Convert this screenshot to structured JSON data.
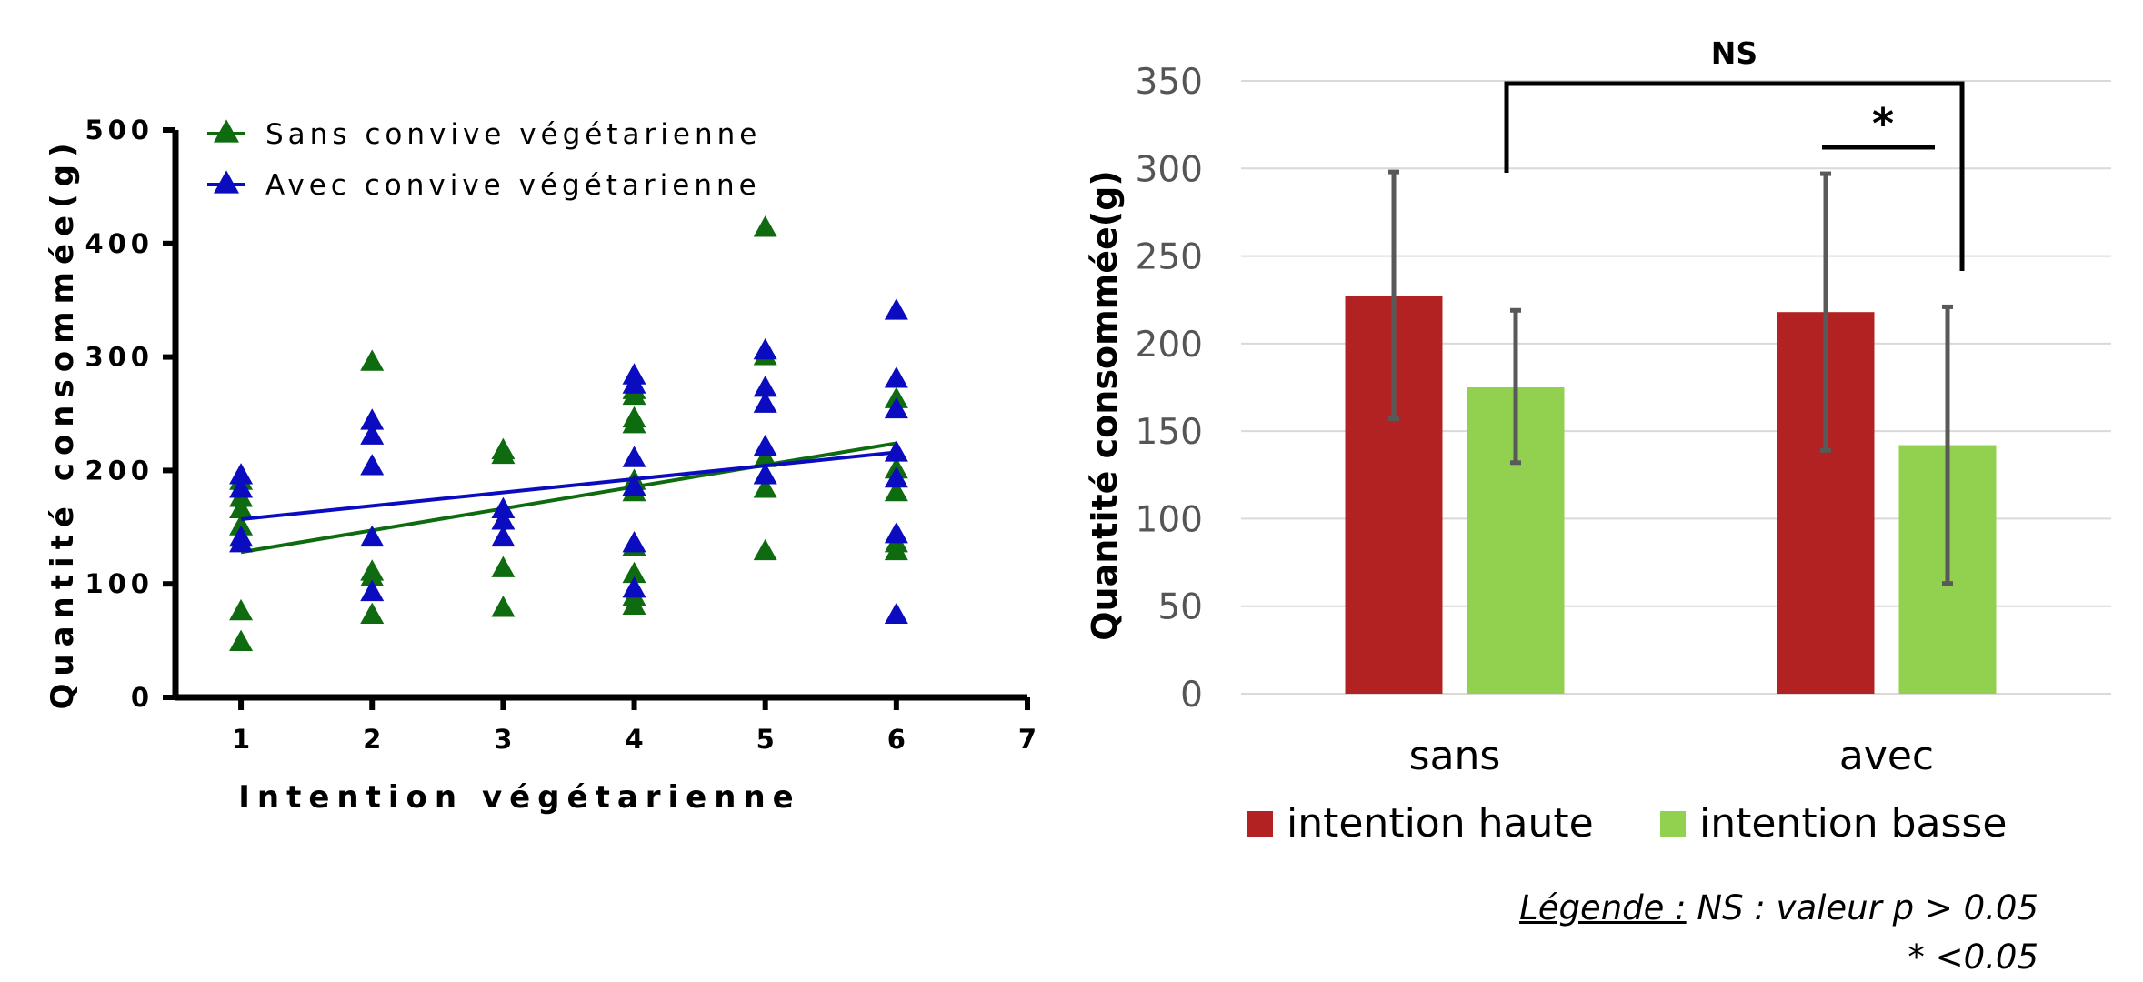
{
  "chart_data": [
    {
      "type": "scatter",
      "title": "",
      "xlabel": "Intention végétarienne",
      "ylabel": "Quantité consommée(g)",
      "xlim": [
        0.5,
        7
      ],
      "ylim": [
        0,
        500
      ],
      "xticks": [
        "1",
        "2",
        "3",
        "4",
        "5",
        "6",
        "7"
      ],
      "yticks": [
        "0",
        "100",
        "200",
        "300",
        "400",
        "500"
      ],
      "grid": false,
      "legend_position": "top-left",
      "series": [
        {
          "name": "Sans convive végétarienne",
          "color": "#0f6b0f",
          "marker": "triangle",
          "points": [
            [
              1,
              48
            ],
            [
              1,
              75
            ],
            [
              1,
              140
            ],
            [
              1,
              150
            ],
            [
              1,
              165
            ],
            [
              1,
              175
            ],
            [
              1,
              190
            ],
            [
              2,
              72
            ],
            [
              2,
              105
            ],
            [
              2,
              110
            ],
            [
              2,
              295
            ],
            [
              3,
              78
            ],
            [
              3,
              113
            ],
            [
              3,
              213
            ],
            [
              3,
              217
            ],
            [
              4,
              80
            ],
            [
              4,
              88
            ],
            [
              4,
              108
            ],
            [
              4,
              132
            ],
            [
              4,
              180
            ],
            [
              4,
              190
            ],
            [
              4,
              240
            ],
            [
              4,
              245
            ],
            [
              4,
              265
            ],
            [
              4,
              270
            ],
            [
              5,
              128
            ],
            [
              5,
              183
            ],
            [
              5,
              195
            ],
            [
              5,
              210
            ],
            [
              5,
              300
            ],
            [
              5,
              413
            ],
            [
              6,
              128
            ],
            [
              6,
              135
            ],
            [
              6,
              180
            ],
            [
              6,
              200
            ],
            [
              6,
              262
            ]
          ],
          "trendline": [
            [
              1,
              128
            ],
            [
              6,
              224
            ]
          ]
        },
        {
          "name": "Avec convive végétarienne",
          "color": "#0b0bbf",
          "marker": "triangle",
          "points": [
            [
              1,
              135
            ],
            [
              1,
              140
            ],
            [
              1,
              183
            ],
            [
              1,
              195
            ],
            [
              2,
              92
            ],
            [
              2,
              140
            ],
            [
              2,
              203
            ],
            [
              2,
              230
            ],
            [
              2,
              243
            ],
            [
              3,
              140
            ],
            [
              3,
              155
            ],
            [
              3,
              165
            ],
            [
              4,
              95
            ],
            [
              4,
              135
            ],
            [
              4,
              185
            ],
            [
              4,
              210
            ],
            [
              4,
              275
            ],
            [
              4,
              283
            ],
            [
              5,
              195
            ],
            [
              5,
              220
            ],
            [
              5,
              258
            ],
            [
              5,
              272
            ],
            [
              5,
              305
            ],
            [
              6,
              72
            ],
            [
              6,
              143
            ],
            [
              6,
              192
            ],
            [
              6,
              215
            ],
            [
              6,
              253
            ],
            [
              6,
              280
            ],
            [
              6,
              340
            ]
          ],
          "trendline": [
            [
              1,
              157
            ],
            [
              6,
              216
            ]
          ]
        }
      ]
    },
    {
      "type": "bar",
      "title": "",
      "xlabel": "",
      "ylabel": "Quantité consommée(g)",
      "ylim": [
        0,
        350
      ],
      "yticks": [
        "0",
        "50",
        "100",
        "150",
        "200",
        "250",
        "300",
        "350"
      ],
      "grid": true,
      "legend_position": "bottom",
      "categories": [
        "sans",
        "avec"
      ],
      "series": [
        {
          "name": "intention haute",
          "color": "#b22222",
          "values": [
            227,
            218
          ],
          "error_low": [
            157,
            139
          ],
          "error_high": [
            298,
            297
          ]
        },
        {
          "name": "intention basse",
          "color": "#92d050",
          "values": [
            175,
            142
          ],
          "error_low": [
            132,
            63
          ],
          "error_high": [
            219,
            221
          ]
        }
      ],
      "annotations": [
        {
          "label": "NS",
          "between": [
            "sans",
            "avec"
          ]
        },
        {
          "label": "*",
          "between": [
            "intention haute",
            "intention basse"
          ],
          "category": "avec"
        }
      ]
    }
  ],
  "legend_note": {
    "label": "Légende :",
    "line1": "NS : valeur p > 0.05",
    "line2": "* <0.05"
  },
  "colors": {
    "sans_series": "#0f6b0f",
    "avec_series": "#0b0bbf",
    "haute": "#b22222",
    "basse": "#92d050",
    "error_bar": "#595959",
    "grid": "#d9d9d9"
  }
}
